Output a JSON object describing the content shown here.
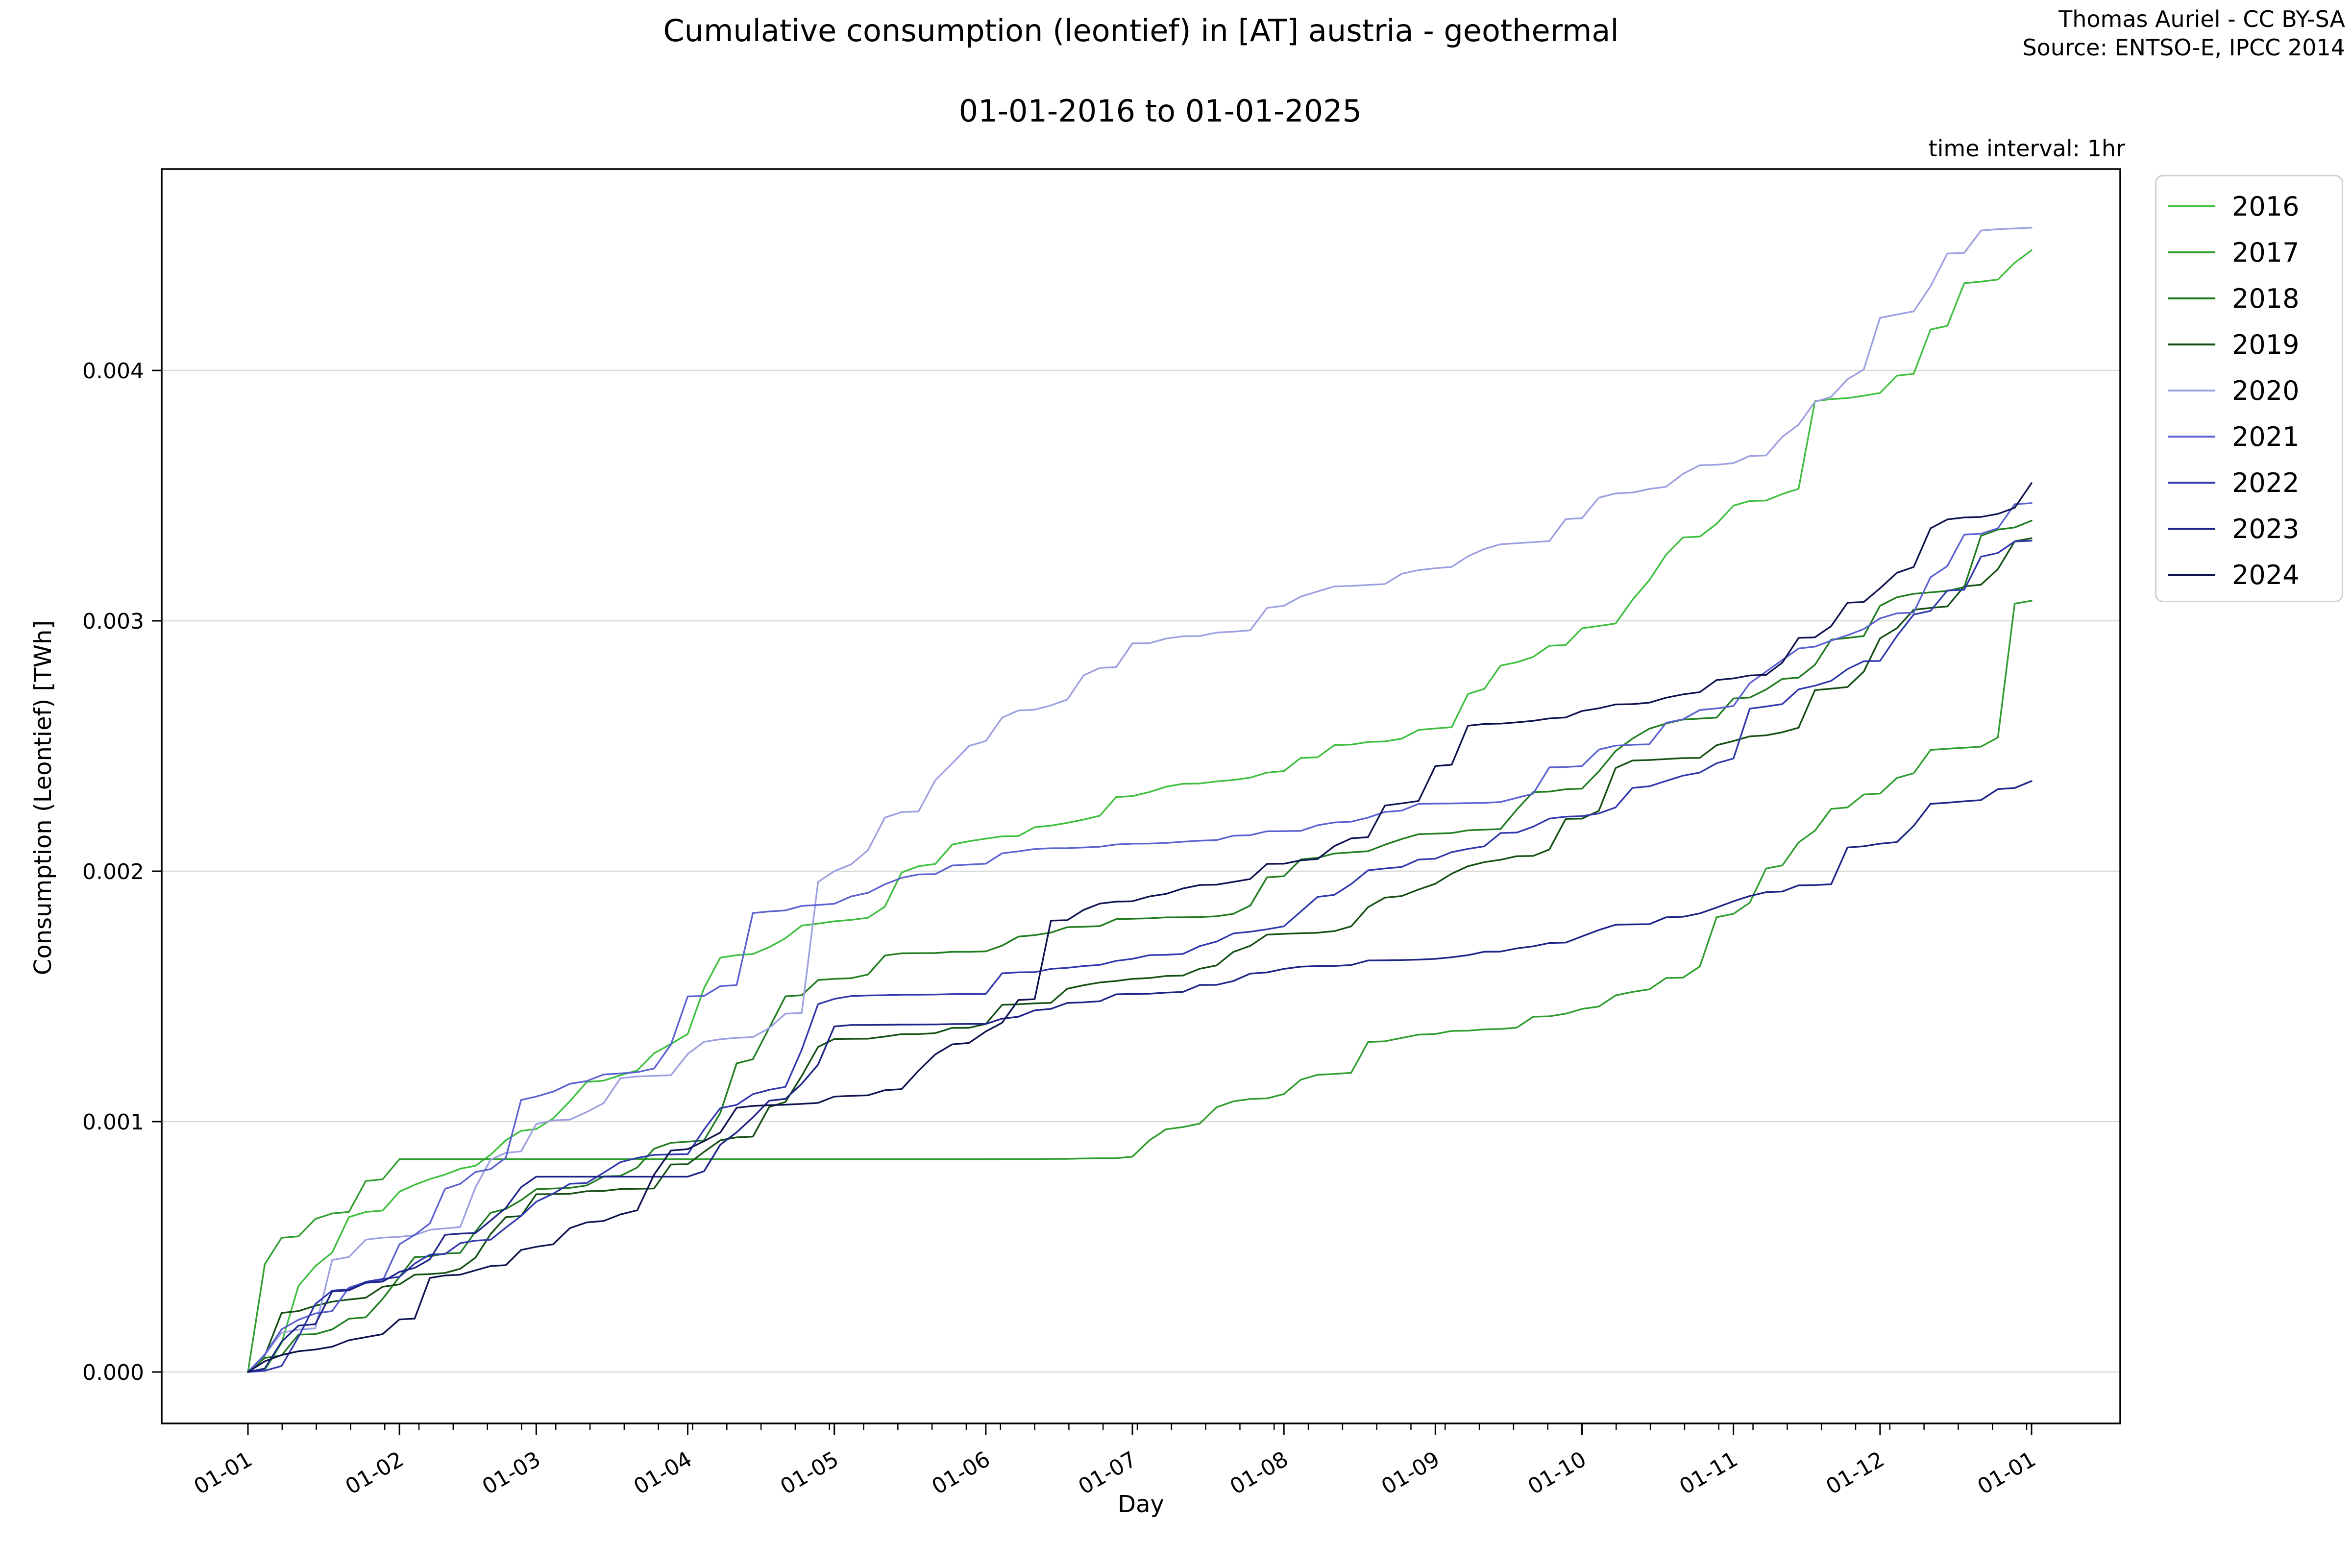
{
  "chart_data": {
    "type": "line",
    "title": "Cumulative consumption (leontief) in [AT] austria - geothermal",
    "subtitle": "01-01-2016 to 01-01-2025",
    "attribution_line1": "Thomas Auriel - CC BY-SA",
    "attribution_line2": "Source: ENTSO-E, IPCC 2014",
    "time_interval_label": "time interval: 1hr",
    "xlabel": "Day",
    "ylabel": "Consumption (Leontief) [TWh]",
    "x_tick_labels": [
      "01-01",
      "01-02",
      "01-03",
      "01-04",
      "01-05",
      "01-06",
      "01-07",
      "01-08",
      "01-09",
      "01-10",
      "01-11",
      "01-12",
      "01-01"
    ],
    "x_month_day_offsets": [
      0,
      31,
      59,
      90,
      120,
      151,
      181,
      212,
      243,
      273,
      304,
      334,
      365
    ],
    "x_minor_tick_interval_days": 7,
    "y_tick_labels": [
      "0.000",
      "0.001",
      "0.002",
      "0.003",
      "0.004"
    ],
    "y_tick_values": [
      0.0,
      0.001,
      0.002,
      0.003,
      0.004
    ],
    "ylim": [
      -0.00022,
      0.00478
    ],
    "xlim_days": [
      0,
      365
    ],
    "grid": "horizontal",
    "legend_position": "outside-upper-right",
    "series": [
      {
        "name": "2016",
        "color": "#3fbf3f",
        "values": [
          0,
          0.00072,
          0.00097,
          0.00135,
          0.0018,
          0.00213,
          0.0023,
          0.0024,
          0.00257,
          0.00297,
          0.00346,
          0.00391,
          0.00448
        ]
      },
      {
        "name": "2017",
        "color": "#2f9e2f",
        "values": [
          0,
          0.00085,
          0.00085,
          0.00085,
          0.00085,
          0.00085,
          0.00086,
          0.00111,
          0.00135,
          0.00145,
          0.00183,
          0.00231,
          0.00308
        ]
      },
      {
        "name": "2018",
        "color": "#1f7d1f",
        "values": [
          0,
          0.00038,
          0.00073,
          0.00092,
          0.00157,
          0.00168,
          0.00181,
          0.00198,
          0.00215,
          0.00233,
          0.00269,
          0.00306,
          0.0034
        ]
      },
      {
        "name": "2019",
        "color": "#134f13",
        "values": [
          0,
          0.00035,
          0.00071,
          0.00083,
          0.00133,
          0.00139,
          0.00157,
          0.00175,
          0.00195,
          0.00221,
          0.00252,
          0.00293,
          0.00333
        ]
      },
      {
        "name": "2020",
        "color": "#9c9fe0",
        "values": [
          0,
          0.00054,
          0.00099,
          0.00127,
          0.002,
          0.00252,
          0.00291,
          0.00306,
          0.00321,
          0.00341,
          0.00363,
          0.00421,
          0.00457
        ]
      },
      {
        "name": "2021",
        "color": "#5b61d0",
        "values": [
          0,
          0.00051,
          0.0011,
          0.0015,
          0.00187,
          0.00203,
          0.00211,
          0.00216,
          0.00227,
          0.00242,
          0.00266,
          0.00301,
          0.00347
        ]
      },
      {
        "name": "2022",
        "color": "#3138ad",
        "values": [
          0,
          0.00038,
          0.00068,
          0.00087,
          0.00149,
          0.00151,
          0.00165,
          0.00178,
          0.00205,
          0.00222,
          0.00245,
          0.00284,
          0.00332
        ]
      },
      {
        "name": "2023",
        "color": "#1d2387",
        "values": [
          0,
          0.0004,
          0.00078,
          0.00078,
          0.00138,
          0.00139,
          0.00151,
          0.00161,
          0.00165,
          0.00174,
          0.00188,
          0.00211,
          0.00236
        ]
      },
      {
        "name": "2024",
        "color": "#0e1350",
        "values": [
          0,
          0.00021,
          0.0005,
          0.00089,
          0.0011,
          0.00136,
          0.00188,
          0.00203,
          0.00242,
          0.00264,
          0.00277,
          0.00313,
          0.00355
        ]
      }
    ]
  }
}
